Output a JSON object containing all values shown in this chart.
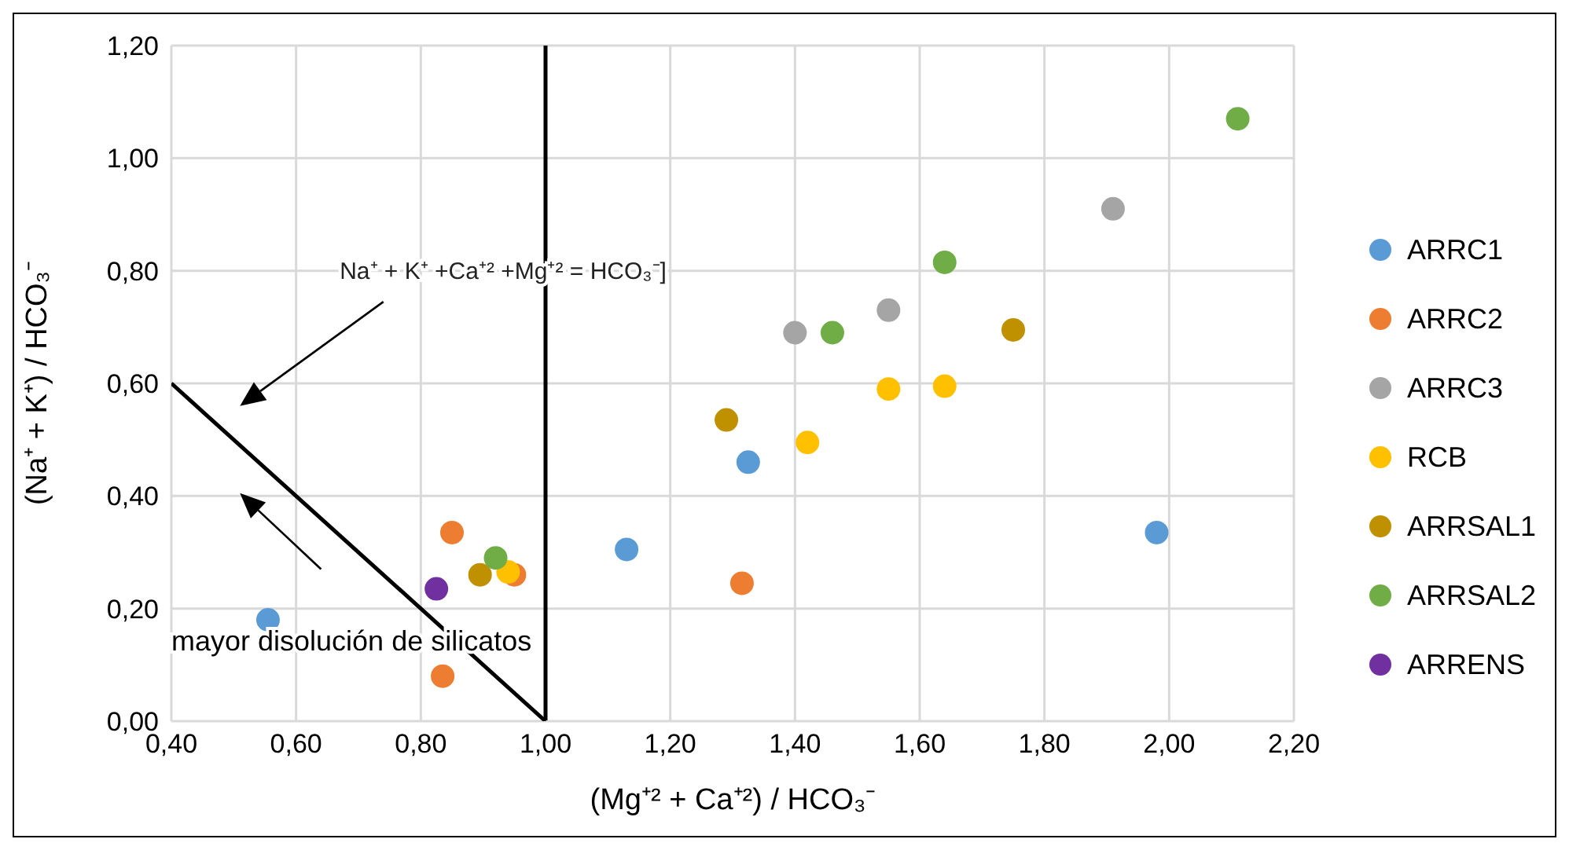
{
  "chart_data": {
    "type": "scatter",
    "xlabel": "(Mg⁺² + Ca⁺²) / HCO₃⁻",
    "ylabel": "(Na⁺ + K⁺) / HCO₃⁻",
    "xlim": [
      0.4,
      2.2
    ],
    "xticks": [
      {
        "value": 0.4,
        "label": "0,40"
      },
      {
        "value": 0.6,
        "label": "0,60"
      },
      {
        "value": 0.8,
        "label": "0,80"
      },
      {
        "value": 1.0,
        "label": "1,00"
      },
      {
        "value": 1.2,
        "label": "1,20"
      },
      {
        "value": 1.4,
        "label": "1,40"
      },
      {
        "value": 1.6,
        "label": "1,60"
      },
      {
        "value": 1.8,
        "label": "1,80"
      },
      {
        "value": 2.0,
        "label": "2,00"
      },
      {
        "value": 2.2,
        "label": "2,20"
      }
    ],
    "ylim": [
      0,
      1.2
    ],
    "yticks": [
      {
        "value": 0,
        "label": "0,00"
      },
      {
        "value": 0.2,
        "label": "0,20"
      },
      {
        "value": 0.4,
        "label": "0,40"
      },
      {
        "value": 0.6,
        "label": "0,60"
      },
      {
        "value": 0.8,
        "label": "0,80"
      },
      {
        "value": 1.0,
        "label": "1,00"
      },
      {
        "value": 1.2,
        "label": "1,20"
      }
    ],
    "grid": true,
    "legend": "right",
    "marker": "circle",
    "ref_lines": [
      {
        "axis": "x",
        "value": 1.0,
        "color": "#000000"
      }
    ],
    "annotations": [
      "Na⁺ + K⁺ +Ca⁺² +Mg⁺² = HCO₃⁻]",
      "mayor disolución de silicatos"
    ],
    "series": [
      {
        "name": "ARRC1",
        "color": "#5b9bd5",
        "x": [
          0.555,
          1.13,
          1.325,
          1.98
        ],
        "values": [
          0.18,
          0.305,
          0.46,
          0.335
        ]
      },
      {
        "name": "ARRC2",
        "color": "#ed7d31",
        "x": [
          0.85,
          0.835,
          0.95,
          1.315
        ],
        "values": [
          0.335,
          0.08,
          0.26,
          0.245
        ]
      },
      {
        "name": "ARRC3",
        "color": "#a5a5a5",
        "x": [
          1.4,
          1.55,
          1.91
        ],
        "values": [
          0.69,
          0.73,
          0.91
        ]
      },
      {
        "name": "RCB",
        "color": "#ffc000",
        "x": [
          0.94,
          1.42,
          1.55,
          1.64
        ],
        "values": [
          0.265,
          0.495,
          0.59,
          0.595
        ]
      },
      {
        "name": "ARRSAL1",
        "color": "#bf9000",
        "x": [
          0.895,
          1.29,
          1.75
        ],
        "values": [
          0.26,
          0.535,
          0.695
        ]
      },
      {
        "name": "ARRSAL2",
        "color": "#70ad47",
        "x": [
          0.92,
          1.46,
          1.64,
          2.11
        ],
        "values": [
          0.29,
          0.69,
          0.815,
          1.07
        ]
      },
      {
        "name": "ARRENS",
        "color": "#7030a0",
        "x": [
          0.825
        ],
        "values": [
          0.235
        ]
      },
      {
        "type": "line",
        "marker": "none",
        "color": "#000000",
        "x": [
          0.4,
          1.0
        ],
        "values": [
          0.6,
          0
        ]
      }
    ]
  }
}
